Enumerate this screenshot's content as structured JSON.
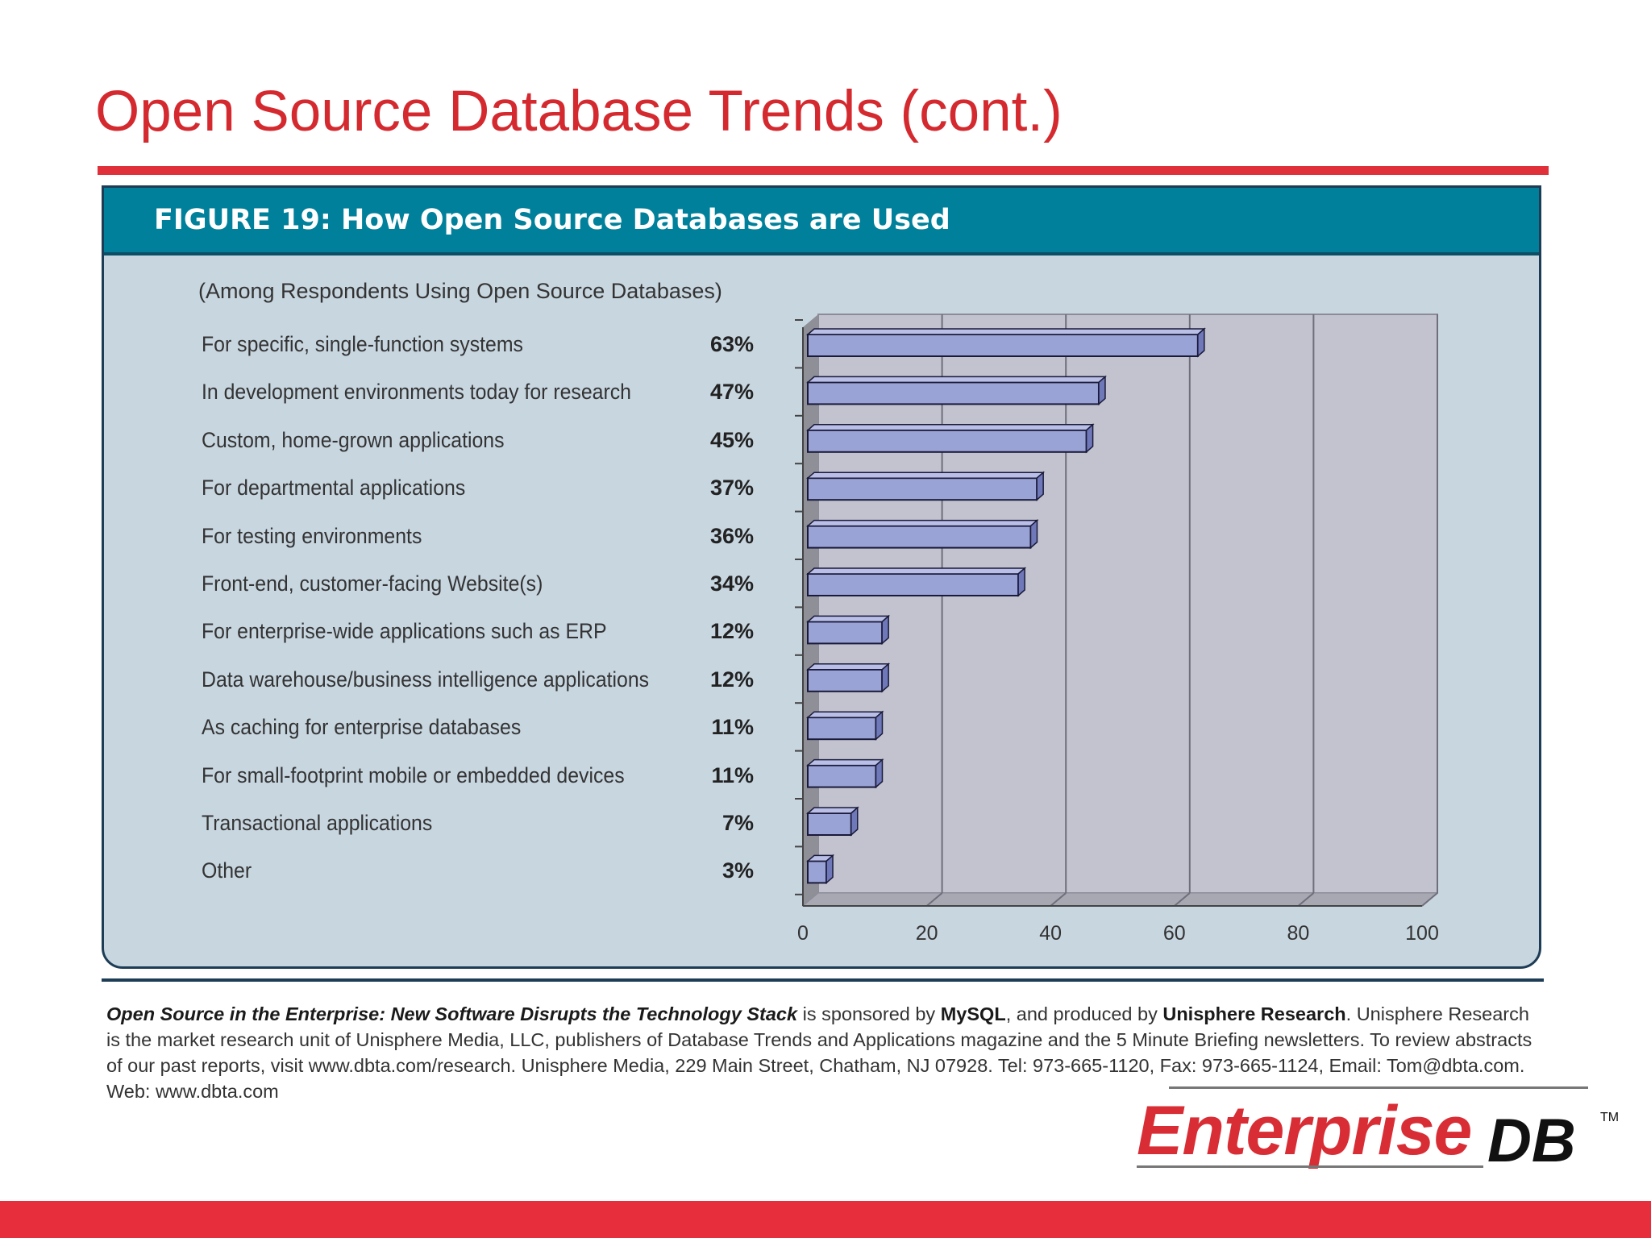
{
  "slide": {
    "title": "Open Source Database Trends (cont.)"
  },
  "figure": {
    "title": "FIGURE 19:  How Open Source Databases are Used"
  },
  "chart_data": {
    "type": "bar",
    "orientation": "horizontal",
    "title": "FIGURE 19:  How Open Source Databases are Used",
    "subtitle": "(Among Respondents Using Open Source Databases)",
    "categories": [
      "For specific, single-function systems",
      "In development environments today for research",
      "Custom, home-grown applications",
      "For departmental applications",
      "For testing environments",
      "Front-end, customer-facing Website(s)",
      "For enterprise-wide applications such as ERP",
      "Data warehouse/business intelligence applications",
      "As caching for enterprise databases",
      "For small-footprint mobile or embedded devices",
      "Transactional applications",
      "Other"
    ],
    "values": [
      63,
      47,
      45,
      37,
      36,
      34,
      12,
      12,
      11,
      11,
      7,
      3
    ],
    "value_labels": [
      "63%",
      "47%",
      "45%",
      "37%",
      "36%",
      "34%",
      "12%",
      "12%",
      "11%",
      "11%",
      "7%",
      "3%"
    ],
    "x_ticks": [
      "0",
      "20",
      "40",
      "60",
      "80",
      "100"
    ],
    "xlim": [
      0,
      100
    ],
    "grid": true,
    "style": "3d",
    "bar_color": "#9aa3d6",
    "plot_background": "#c2c3cf"
  },
  "footer": {
    "publication": "Open Source in the Enterprise: New Software Disrupts the Technology Stack",
    "text1": " is sponsored by ",
    "sponsor": "MySQL",
    "text2": ", and produced by ",
    "producer": "Unisphere Research",
    "text3": ".  Unisphere Research is the market research unit of Unisphere Media, LLC, publishers of Database Trends and Applications magazine and the 5 Minute Briefing newsletters. To review abstracts of our past reports, visit www.dbta.com/research.  Unisphere Media, 229 Main Street, Chatham, NJ 07928. Tel: 973-665-1120, Fax: 973-665-1124, Email: Tom@dbta.com.  Web: www.dbta.com"
  },
  "logo": {
    "enterprise": "Enterprise",
    "db": "DB",
    "tm": "TM"
  },
  "colors": {
    "accent_red": "#e0313b",
    "header_teal": "#00809a",
    "panel_bg": "#c8d6e0"
  }
}
